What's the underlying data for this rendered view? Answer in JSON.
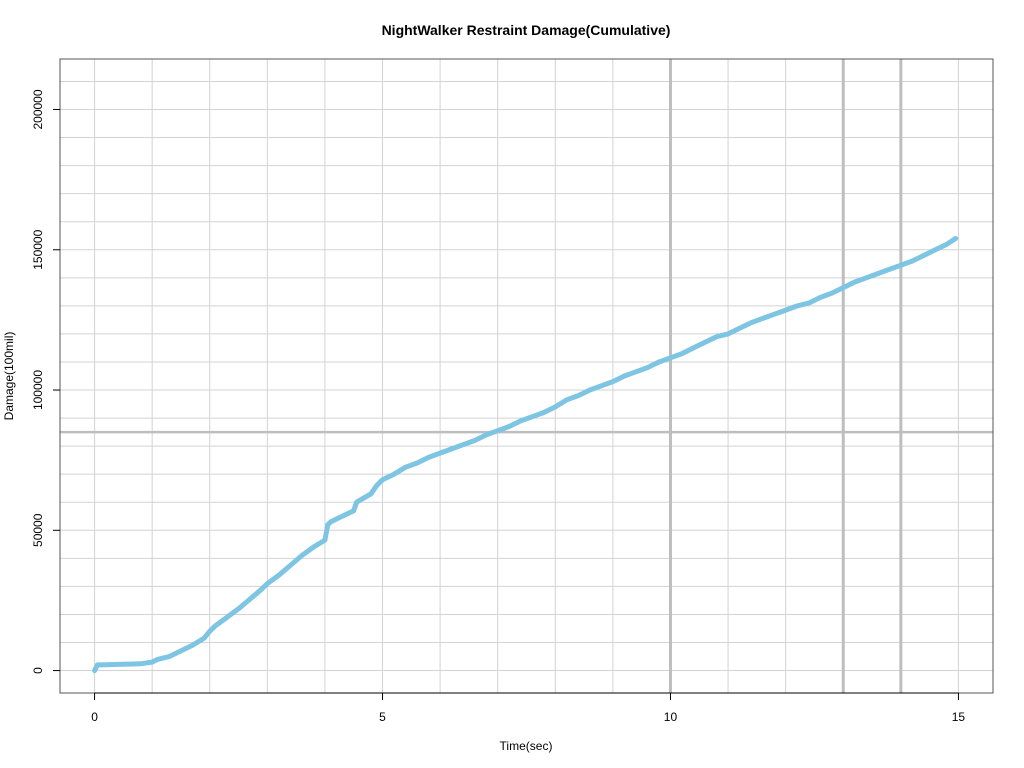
{
  "chart_data": {
    "type": "line",
    "title": "NightWalker Restraint Damage(Cumulative)",
    "xlabel": "Time(sec)",
    "ylabel": "Damage(100mil)",
    "xlim": [
      -0.6,
      15.6
    ],
    "ylim": [
      -8000,
      218000
    ],
    "x_ticks": [
      0,
      5,
      10,
      15
    ],
    "x_tick_labels": [
      "0",
      "5",
      "10",
      "15"
    ],
    "y_ticks": [
      0,
      50000,
      100000,
      150000,
      200000
    ],
    "y_tick_labels": [
      "0",
      "50000",
      "100000",
      "150000",
      "200000"
    ],
    "grid": true,
    "minor_x_grid_step": 1,
    "minor_y_grid_step": 10000,
    "emphasized_vlines": [
      10,
      13,
      14
    ],
    "emphasized_hline": 85000,
    "series": [
      {
        "color": "#7ec4e3",
        "x": [
          0,
          0.05,
          0.2,
          0.4,
          0.6,
          0.8,
          1.0,
          1.1,
          1.3,
          1.5,
          1.7,
          1.9,
          2.0,
          2.1,
          2.3,
          2.5,
          2.7,
          2.9,
          3.0,
          3.2,
          3.4,
          3.6,
          3.8,
          4.0,
          4.05,
          4.1,
          4.3,
          4.5,
          4.55,
          4.8,
          4.9,
          5.0,
          5.2,
          5.4,
          5.6,
          5.8,
          6.0,
          6.2,
          6.4,
          6.6,
          6.8,
          7.0,
          7.2,
          7.4,
          7.6,
          7.8,
          8.0,
          8.2,
          8.4,
          8.6,
          8.8,
          9.0,
          9.2,
          9.4,
          9.6,
          9.8,
          10.0,
          10.2,
          10.4,
          10.6,
          10.8,
          11.0,
          11.2,
          11.4,
          11.6,
          11.8,
          12.0,
          12.2,
          12.4,
          12.6,
          12.8,
          13.0,
          13.2,
          13.4,
          13.6,
          13.8,
          14.0,
          14.2,
          14.4,
          14.6,
          14.8,
          14.95
        ],
        "y": [
          0,
          2000,
          2100,
          2200,
          2300,
          2400,
          3000,
          4000,
          5000,
          7000,
          9000,
          11500,
          14000,
          16000,
          19000,
          22000,
          25500,
          29000,
          31000,
          34000,
          37500,
          41000,
          44000,
          46500,
          52000,
          53000,
          55000,
          57000,
          60000,
          63000,
          66000,
          68000,
          70000,
          72500,
          74000,
          76000,
          77500,
          79000,
          80500,
          82000,
          84000,
          85500,
          87000,
          89000,
          90500,
          92000,
          94000,
          96500,
          98000,
          100000,
          101500,
          103000,
          105000,
          106500,
          108000,
          110000,
          111500,
          113000,
          115000,
          117000,
          119000,
          120000,
          122000,
          124000,
          125500,
          127000,
          128500,
          130000,
          131000,
          133000,
          134500,
          136500,
          138500,
          140000,
          141500,
          143000,
          144500,
          146000,
          148000,
          150000,
          152000,
          154000
        ]
      }
    ]
  }
}
